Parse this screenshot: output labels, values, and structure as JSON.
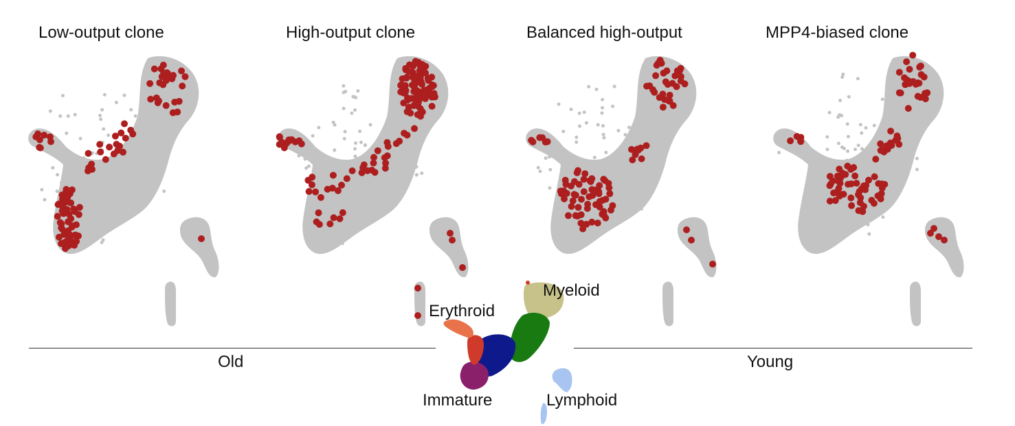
{
  "panels": [
    {
      "title": "Low-output clone"
    },
    {
      "title": "High-output clone"
    },
    {
      "title": "Balanced high-output"
    },
    {
      "title": "MPP4-biased clone"
    }
  ],
  "groups": {
    "left": "Old",
    "right": "Young"
  },
  "legend_map": {
    "labels": {
      "myeloid": "Myeloid",
      "erythroid": "Erythroid",
      "immature": "Immature",
      "lymphoid": "Lymphoid"
    },
    "colors": {
      "myeloid_cap": "#c7c28a",
      "myeloid": "#1a7a12",
      "progenitor": "#0e1a8c",
      "immature": "#8a1f6a",
      "erythroid": "#e8724a",
      "erythroid_red": "#d03a2a",
      "lymphoid": "#a8c4f0"
    }
  },
  "colors": {
    "background_cells": "#c3c3c3",
    "clone_cells": "#ad1f1f"
  }
}
